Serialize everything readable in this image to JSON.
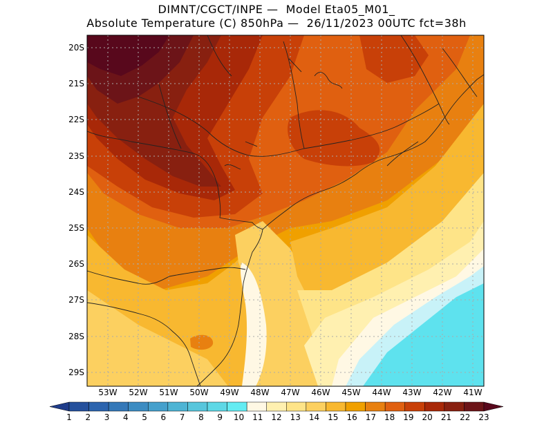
{
  "title": {
    "line1": "DIMNT/CGCT/INPE —  Model Eta05_M01_",
    "line2": "Absolute Temperature (C) 850hPa —  26/11/2023 00UTC fct=38h"
  },
  "axes": {
    "lat_labels": [
      "20S",
      "21S",
      "22S",
      "23S",
      "24S",
      "25S",
      "26S",
      "27S",
      "28S",
      "29S"
    ],
    "lon_labels": [
      "53W",
      "52W",
      "51W",
      "50W",
      "49W",
      "48W",
      "47W",
      "46W",
      "45W",
      "44W",
      "43W",
      "42W",
      "41W"
    ]
  },
  "colorbar": {
    "labels": [
      "1",
      "2",
      "3",
      "4",
      "5",
      "6",
      "7",
      "8",
      "9",
      "10",
      "11",
      "12",
      "13",
      "14",
      "15",
      "16",
      "17",
      "18",
      "19",
      "20",
      "21",
      "22",
      "23"
    ],
    "colors": [
      "#1f3c8a",
      "#25509c",
      "#2c64ae",
      "#3478b8",
      "#3c8cc2",
      "#45a0cc",
      "#4eb4d4",
      "#58c6dc",
      "#5ed8e6",
      "#64ecf2",
      "#fff8e4",
      "#fff0b0",
      "#fee488",
      "#fcd060",
      "#f8b830",
      "#f0a000",
      "#e88010",
      "#e06010",
      "#c84008",
      "#a82808",
      "#882010",
      "#6c1418",
      "#58081c"
    ]
  },
  "map_colors": {
    "cyan": "#5ee2ee",
    "light_cyan": "#c8f2f8",
    "cream": "#fff8e4",
    "pale_yellow": "#fff0b0",
    "light_yellow": "#fee488",
    "yellow": "#fcd060",
    "amber": "#f8b830",
    "orange": "#f0a000",
    "dark_orange": "#e88010",
    "red_orange": "#e06010",
    "rust": "#c84008",
    "brown_red": "#a82808",
    "dark_brown": "#882010",
    "maroon": "#6c1418",
    "deep_maroon": "#58081c"
  }
}
